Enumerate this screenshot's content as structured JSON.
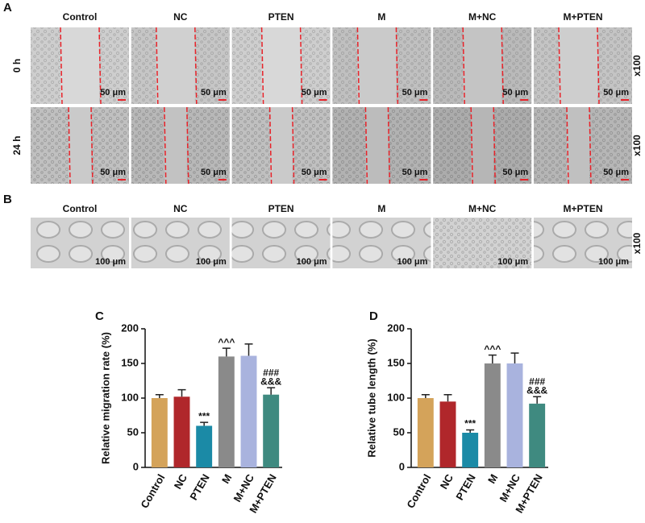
{
  "figure": {
    "panel_labels": [
      "A",
      "B",
      "C",
      "D"
    ],
    "a": {
      "columns": [
        "Control",
        "NC",
        "PTEN",
        "M",
        "M+NC",
        "M+PTEN"
      ],
      "rows": [
        "0 h",
        "24 h"
      ],
      "scale_bar": "50 μm",
      "magnification": "x100"
    },
    "b": {
      "columns": [
        "Control",
        "NC",
        "PTEN",
        "M",
        "M+NC",
        "M+PTEN"
      ],
      "scale_bar": "100 μm",
      "magnification": "x100"
    }
  },
  "chart_data": [
    {
      "type": "bar",
      "y_label": "Relative migration rate (%)",
      "categories": [
        "Control",
        "NC",
        "PTEN",
        "M",
        "M+NC",
        "M+PTEN"
      ],
      "values": [
        100,
        102,
        60,
        160,
        161,
        105
      ],
      "errors": [
        5,
        10,
        5,
        12,
        17,
        10
      ],
      "colors": [
        "#d4a35a",
        "#b0272b",
        "#1b8aa6",
        "#8a8a8a",
        "#a9b3de",
        "#3f8a80"
      ],
      "annotations": [
        null,
        null,
        [
          "***"
        ],
        [
          "^^^"
        ],
        null,
        [
          "###",
          "&&&"
        ]
      ],
      "ylim": [
        0,
        200
      ],
      "yticks": [
        0,
        50,
        100,
        150,
        200
      ]
    },
    {
      "type": "bar",
      "y_label": "Relative tube length (%)",
      "categories": [
        "Control",
        "NC",
        "PTEN",
        "M",
        "M+NC",
        "M+PTEN"
      ],
      "values": [
        100,
        95,
        50,
        150,
        150,
        92
      ],
      "errors": [
        5,
        10,
        4,
        12,
        15,
        10
      ],
      "colors": [
        "#d4a35a",
        "#b0272b",
        "#1b8aa6",
        "#8a8a8a",
        "#a9b3de",
        "#3f8a80"
      ],
      "annotations": [
        null,
        null,
        [
          "***"
        ],
        [
          "^^^"
        ],
        null,
        [
          "###",
          "&&&"
        ]
      ],
      "ylim": [
        0,
        200
      ],
      "yticks": [
        0,
        50,
        100,
        150,
        200
      ]
    }
  ]
}
